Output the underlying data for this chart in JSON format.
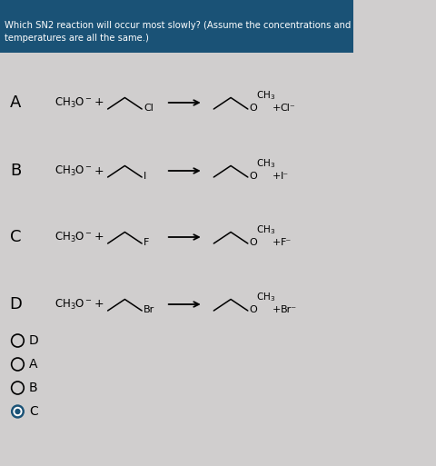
{
  "title_text": "Which SN2 reaction will occur most slowly? (Assume the concentrations and\ntemperatures are all the same.)",
  "title_bg": "#1a5276",
  "title_fg": "#ffffff",
  "bg_color": "#d0cece",
  "rows": [
    {
      "label": "A",
      "halide": "Cl",
      "halide_sign": "Cl⁻"
    },
    {
      "label": "B",
      "halide": "I",
      "halide_sign": "I⁻"
    },
    {
      "label": "C",
      "halide": "F",
      "halide_sign": "F⁻"
    },
    {
      "label": "D",
      "halide": "Br",
      "halide_sign": "Br⁻"
    }
  ],
  "options": [
    "D",
    "A",
    "B",
    "C"
  ],
  "selected": "C",
  "fig_width": 4.8,
  "fig_height": 5.13,
  "dpi": 100
}
